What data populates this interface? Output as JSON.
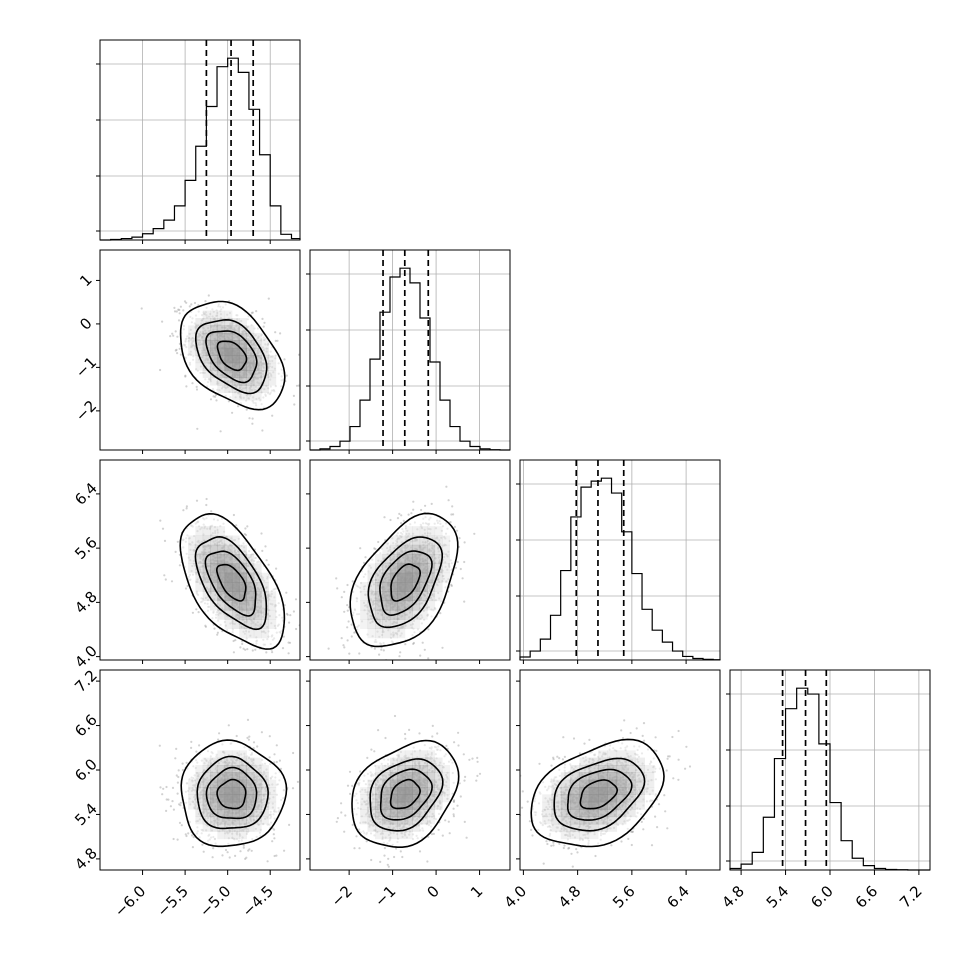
{
  "figure": {
    "kind": "corner-plot",
    "colors": {
      "ink": "#000000",
      "grid": "#b0b0b0",
      "scatter": "#999999",
      "density": "#000000"
    }
  },
  "chart_data": {
    "type": "corner",
    "grid": true,
    "quantiles": [
      0.16,
      0.5,
      0.84
    ],
    "contour_levels": [
      0.95,
      0.75,
      0.5,
      0.2
    ],
    "parameters": [
      {
        "mean": -4.95,
        "std": 0.25,
        "range": [
          -6.5,
          -4.15
        ],
        "ticks": [
          -6.0,
          -5.5,
          -5.0,
          -4.5
        ],
        "tick_labels": [
          "−6.0",
          "−5.5",
          "−5.0",
          "−4.5"
        ]
      },
      {
        "mean": -0.72,
        "std": 0.5,
        "range": [
          -2.9,
          1.7
        ],
        "ticks": [
          -2,
          -1,
          0,
          1
        ],
        "tick_labels": [
          "−2",
          "−1",
          "0",
          "1"
        ]
      },
      {
        "mean": 5.1,
        "std": 0.4,
        "range": [
          3.95,
          6.9
        ],
        "ticks": [
          4.0,
          4.8,
          5.6,
          6.4
        ],
        "tick_labels": [
          "4.0",
          "4.8",
          "5.6",
          "6.4"
        ]
      },
      {
        "mean": 5.67,
        "std": 0.29,
        "range": [
          4.65,
          7.35
        ],
        "ticks": [
          4.8,
          5.4,
          6.0,
          6.6,
          7.2
        ],
        "tick_labels": [
          "4.8",
          "5.4",
          "6.0",
          "6.6",
          "7.2"
        ]
      }
    ],
    "histograms": [
      {
        "param": 0,
        "quantile_values": [
          -5.25,
          -4.96,
          -4.7
        ],
        "edges": [
          -6.5,
          -6.375,
          -6.25,
          -6.125,
          -6.0,
          -5.875,
          -5.75,
          -5.625,
          -5.5,
          -5.375,
          -5.25,
          -5.125,
          -5.0,
          -4.875,
          -4.75,
          -4.625,
          -4.5,
          -4.375,
          -4.25,
          -4.15
        ],
        "counts": [
          0,
          2,
          5,
          10,
          22,
          40,
          70,
          120,
          210,
          330,
          470,
          610,
          640,
          590,
          460,
          300,
          120,
          20,
          5
        ]
      },
      {
        "param": 1,
        "quantile_values": [
          -1.22,
          -0.72,
          -0.18
        ],
        "edges": [
          -2.9,
          -2.67,
          -2.44,
          -2.21,
          -1.98,
          -1.75,
          -1.52,
          -1.29,
          -1.06,
          -0.83,
          -0.6,
          -0.37,
          -0.14,
          0.09,
          0.32,
          0.55,
          0.78,
          1.01,
          1.24,
          1.47,
          1.7
        ],
        "counts": [
          0,
          4,
          12,
          30,
          80,
          170,
          310,
          470,
          590,
          620,
          570,
          450,
          300,
          170,
          80,
          30,
          12,
          4,
          1,
          0
        ]
      },
      {
        "param": 2,
        "quantile_values": [
          4.78,
          5.1,
          5.48
        ],
        "edges": [
          3.95,
          4.1,
          4.25,
          4.4,
          4.55,
          4.7,
          4.85,
          5.0,
          5.15,
          5.3,
          5.45,
          5.6,
          5.75,
          5.9,
          6.05,
          6.2,
          6.35,
          6.5,
          6.65,
          6.8,
          6.9
        ],
        "counts": [
          10,
          30,
          70,
          150,
          300,
          480,
          580,
          600,
          610,
          560,
          430,
          290,
          170,
          100,
          60,
          30,
          12,
          5,
          2,
          1
        ]
      },
      {
        "param": 3,
        "quantile_values": [
          5.36,
          5.67,
          5.95
        ],
        "edges": [
          4.65,
          4.8,
          4.95,
          5.1,
          5.25,
          5.4,
          5.55,
          5.7,
          5.85,
          6.0,
          6.15,
          6.3,
          6.45,
          6.6,
          6.75,
          6.9,
          7.05,
          7.2,
          7.35
        ],
        "counts": [
          5,
          20,
          60,
          180,
          380,
          550,
          620,
          600,
          430,
          230,
          100,
          40,
          15,
          5,
          2,
          1,
          0,
          0
        ]
      }
    ],
    "pairs": [
      {
        "x": 0,
        "y": 1,
        "correlation": -0.4
      },
      {
        "x": 0,
        "y": 2,
        "correlation": -0.55
      },
      {
        "x": 1,
        "y": 2,
        "correlation": 0.45
      },
      {
        "x": 0,
        "y": 3,
        "correlation": 0.0
      },
      {
        "x": 1,
        "y": 3,
        "correlation": 0.3
      },
      {
        "x": 2,
        "y": 3,
        "correlation": 0.35
      }
    ]
  }
}
